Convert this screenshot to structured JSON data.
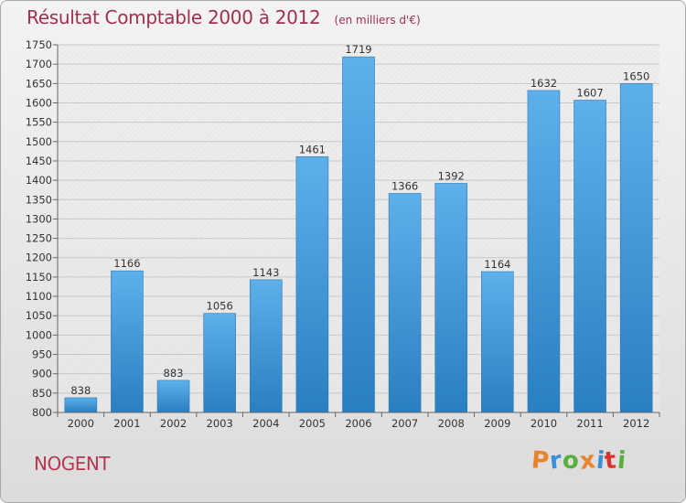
{
  "header": {
    "title": "Résultat Comptable 2000 à 2012",
    "subtitle": "(en milliers d'€)"
  },
  "footer": {
    "commune": "NOGENT",
    "brand": "Proxiti"
  },
  "colors": {
    "bar_top": "#5eb0ea",
    "bar_bottom": "#2a7fc0",
    "title": "#a0304d",
    "grid": "#c8c8c8"
  },
  "chart_data": {
    "type": "bar",
    "title": "Résultat Comptable 2000 à 2012",
    "subtitle": "(en milliers d'€)",
    "xlabel": "",
    "ylabel": "",
    "categories": [
      "2000",
      "2001",
      "2002",
      "2003",
      "2004",
      "2005",
      "2006",
      "2007",
      "2008",
      "2009",
      "2010",
      "2011",
      "2012"
    ],
    "values": [
      838,
      1166,
      883,
      1056,
      1143,
      1461,
      1719,
      1366,
      1392,
      1164,
      1632,
      1607,
      1650
    ],
    "ylim": [
      800,
      1750
    ],
    "yticks": [
      800,
      850,
      900,
      950,
      1000,
      1050,
      1100,
      1150,
      1200,
      1250,
      1300,
      1350,
      1400,
      1450,
      1500,
      1550,
      1600,
      1650,
      1700,
      1750
    ],
    "grid": true,
    "legend": "none"
  }
}
